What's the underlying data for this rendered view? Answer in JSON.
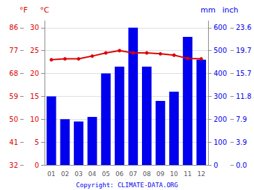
{
  "chart_data": {
    "type": "bar",
    "categories": [
      "01",
      "02",
      "03",
      "04",
      "05",
      "06",
      "07",
      "08",
      "09",
      "10",
      "11",
      "12"
    ],
    "series": [
      {
        "type": "bar",
        "axis": "y2",
        "color": "#0000ee",
        "values": [
          300,
          200,
          190,
          210,
          400,
          430,
          600,
          430,
          280,
          320,
          560,
          460
        ]
      },
      {
        "type": "line",
        "axis": "y",
        "color": "#dd0000",
        "marker": "circle",
        "values": [
          23.0,
          23.2,
          23.2,
          23.8,
          24.5,
          25.0,
          24.5,
          24.5,
          24.3,
          24.0,
          23.3,
          23.2
        ]
      }
    ],
    "ylabel": "°C",
    "ylim": [
      0,
      31.5
    ],
    "yticks": [
      0,
      5,
      10,
      15,
      20,
      25,
      30
    ],
    "y2label": "mm",
    "y2lim": [
      0,
      630
    ],
    "y2ticks": [
      0,
      100,
      200,
      300,
      400,
      500,
      600
    ],
    "y3label": "°F",
    "y3lim": [
      0,
      31.5
    ],
    "y3ticks": [
      {
        "value": 0,
        "label": "32"
      },
      {
        "value": 5,
        "label": "41"
      },
      {
        "value": 10,
        "label": "50"
      },
      {
        "value": 15,
        "label": "59"
      },
      {
        "value": 20,
        "label": "68"
      },
      {
        "value": 25,
        "label": "77"
      },
      {
        "value": 30,
        "label": "86"
      }
    ],
    "y4label": "inch",
    "y4lim": [
      0,
      630
    ],
    "y4ticks": [
      {
        "value": 0,
        "label": "0.0"
      },
      {
        "value": 100,
        "label": "3.9"
      },
      {
        "value": 200,
        "label": "7.9"
      },
      {
        "value": 300,
        "label": "11.8"
      },
      {
        "value": 400,
        "label": "15.7"
      },
      {
        "value": 500,
        "label": "19.7"
      },
      {
        "value": 600,
        "label": "23.6"
      }
    ],
    "grid": true,
    "annotations": [
      "Copyright: CLIMATE-DATA.ORG"
    ]
  }
}
